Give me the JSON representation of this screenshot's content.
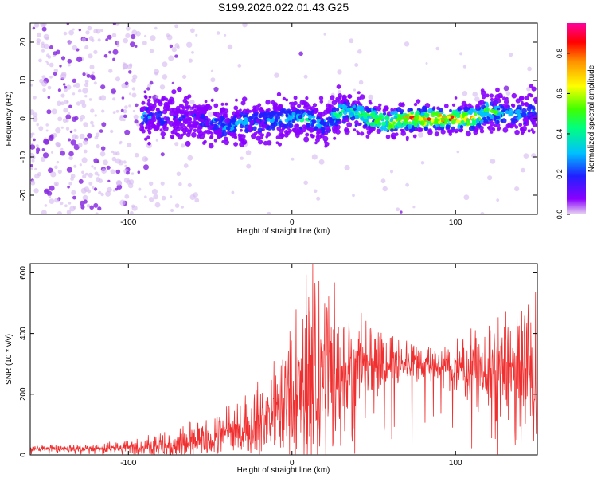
{
  "title": "S199.2026.022.01.43.G25",
  "colors": {
    "line": "#f03030",
    "dot_low": "#8a2be2",
    "frame": "#000000",
    "colormap": [
      "#e0c8f0",
      "#8a00ff",
      "#2020ff",
      "#00c0ff",
      "#00ff80",
      "#40ff00",
      "#ffff00",
      "#ff9000",
      "#ff0000",
      "#ff00a0"
    ]
  },
  "chart_data": [
    {
      "type": "heatmap",
      "xlabel": "Height of straight line (km)",
      "ylabel": "Frequency (Hz)",
      "xlim": [
        -160,
        150
      ],
      "ylim": [
        -25,
        25
      ],
      "x_ticks": [
        -100,
        0,
        100
      ],
      "y_ticks": [
        -20,
        -10,
        0,
        10,
        20
      ],
      "colorbar": {
        "label": "Normalized spectral amplitude",
        "range": [
          0,
          0.95
        ],
        "ticks": [
          "0.0",
          "0.2",
          "0.4",
          "0.6",
          "0.8"
        ],
        "tick_values": [
          0,
          0.2,
          0.4,
          0.6,
          0.8
        ]
      },
      "ridge": {
        "x": [
          -90,
          -80,
          -70,
          -60,
          -50,
          -40,
          -30,
          -20,
          -10,
          0,
          10,
          20,
          30,
          40,
          50,
          60,
          70,
          80,
          90,
          100,
          110,
          120,
          130,
          140,
          150
        ],
        "frequency": [
          1,
          0,
          0,
          0,
          -1,
          -2,
          -1,
          -1,
          0,
          0,
          0,
          -2,
          2,
          1,
          0,
          -1,
          0,
          0,
          0,
          0,
          0,
          2,
          1,
          1,
          2
        ],
        "amplitude": [
          0.3,
          0.25,
          0.2,
          0.2,
          0.3,
          0.35,
          0.35,
          0.3,
          0.35,
          0.4,
          0.4,
          0.35,
          0.45,
          0.5,
          0.55,
          0.6,
          0.75,
          0.8,
          0.85,
          0.8,
          0.75,
          0.5,
          0.4,
          0.35,
          0.3
        ]
      }
    },
    {
      "type": "line",
      "xlabel": "Height of straight line (km)",
      "ylabel": "SNR (10 * v/v)",
      "xlim": [
        -160,
        150
      ],
      "ylim": [
        0,
        630
      ],
      "x_ticks": [
        -100,
        0,
        100
      ],
      "y_ticks": [
        0,
        200,
        400,
        600
      ],
      "envelope": {
        "x": [
          -160,
          -140,
          -120,
          -100,
          -80,
          -60,
          -50,
          -40,
          -30,
          -20,
          -10,
          0,
          10,
          20,
          30,
          40,
          50,
          60,
          70,
          80,
          90,
          100,
          110,
          120,
          130,
          140,
          150
        ],
        "mean": [
          20,
          20,
          22,
          25,
          30,
          40,
          50,
          70,
          90,
          110,
          140,
          180,
          220,
          260,
          280,
          290,
          290,
          295,
          300,
          295,
          290,
          285,
          280,
          275,
          270,
          265,
          260
        ],
        "peak": [
          30,
          35,
          40,
          50,
          80,
          110,
          120,
          160,
          200,
          250,
          330,
          450,
          630,
          600,
          560,
          480,
          440,
          400,
          380,
          360,
          360,
          380,
          420,
          450,
          480,
          530,
          560
        ]
      }
    }
  ]
}
